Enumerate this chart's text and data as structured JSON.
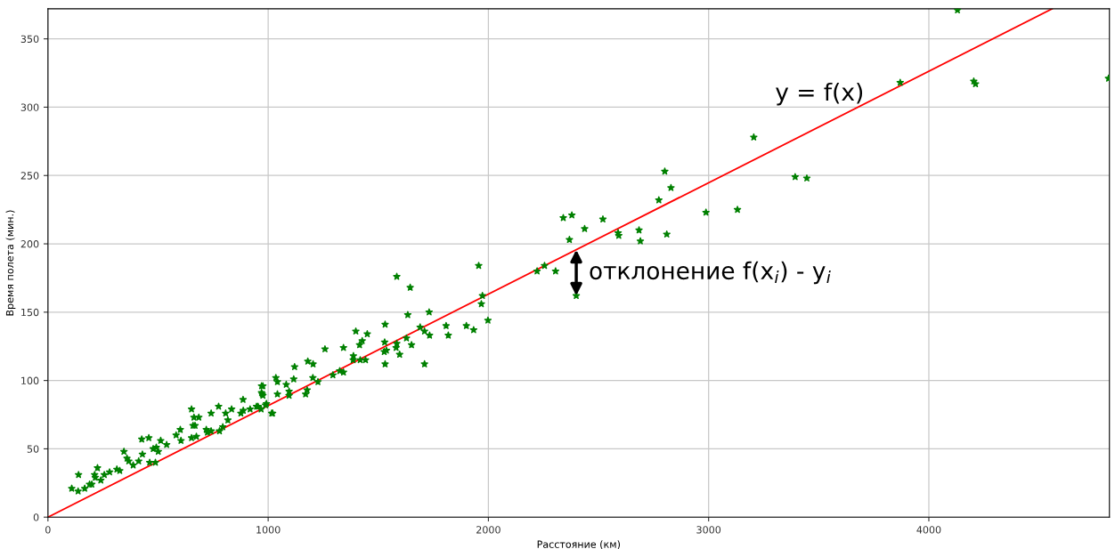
{
  "chart_data": {
    "type": "scatter",
    "xlabel": "Расстояние (км)",
    "ylabel": "Время полета (мин.)",
    "xlim": [
      0,
      4820
    ],
    "ylim": [
      0,
      372
    ],
    "xticks": [
      0,
      1000,
      2000,
      3000,
      4000
    ],
    "yticks": [
      0,
      50,
      100,
      150,
      200,
      250,
      300,
      350
    ],
    "grid": true,
    "series": [
      {
        "color": "#008000",
        "marker": "star",
        "x": [
          108,
          137,
          139,
          167,
          189,
          199,
          212,
          215,
          225,
          240,
          256,
          280,
          313,
          326,
          345,
          359,
          367,
          387,
          412,
          429,
          426,
          458,
          462,
          488,
          478,
          492,
          512,
          501,
          539,
          582,
          601,
          604,
          652,
          663,
          685,
          659,
          652,
          674,
          668,
          719,
          724,
          741,
          741,
          775,
          779,
          794,
          807,
          817,
          834,
          876,
          886,
          887,
          918,
          947,
          970,
          973,
          988,
          1020,
          1035,
          1042,
          976,
          970,
          976,
          992,
          954,
          968,
          1016,
          1082,
          1095,
          1095,
          1042,
          1177,
          1170,
          1116,
          1120,
          1180,
          1204,
          1203,
          1226,
          1258,
          1294,
          1325,
          1342,
          1342,
          1386,
          1387,
          1398,
          1415,
          1418,
          1427,
          1442,
          1450,
          1527,
          1529,
          1531,
          1531,
          1537,
          1581,
          1584,
          1584,
          1597,
          1628,
          1634,
          1645,
          1651,
          1690,
          1710,
          1710,
          1731,
          1733,
          1808,
          1818,
          1900,
          1933,
          1956,
          1968,
          1973,
          1998,
          2221,
          2255,
          2305,
          2340,
          2368,
          2379,
          2399,
          2437,
          2520,
          2589,
          2592,
          2684,
          2690,
          2774,
          2801,
          2810,
          2829,
          2988,
          3131,
          3205,
          3393,
          3446,
          3870,
          4130,
          4204,
          4212,
          4816
        ],
        "values": [
          21,
          19,
          31,
          21,
          24,
          24,
          31,
          29,
          36,
          27,
          31,
          33,
          35,
          34,
          48,
          43,
          41,
          38,
          41,
          46,
          57,
          58,
          40,
          40,
          50,
          51,
          56,
          48,
          53,
          60,
          64,
          56,
          79,
          73,
          73,
          67,
          58,
          59,
          67,
          64,
          62,
          63,
          76,
          81,
          63,
          66,
          76,
          71,
          79,
          76,
          86,
          78,
          79,
          81,
          96,
          90,
          82,
          76,
          102,
          90,
          96,
          91,
          89,
          83,
          81,
          79,
          76,
          97,
          92,
          89,
          99,
          93,
          90,
          101,
          110,
          114,
          112,
          102,
          99,
          123,
          104,
          107,
          106,
          124,
          115,
          118,
          136,
          126,
          115,
          129,
          115,
          134,
          121,
          128,
          141,
          112,
          122,
          124,
          127,
          176,
          119,
          131,
          148,
          168,
          126,
          139,
          136,
          112,
          150,
          133,
          140,
          133,
          140,
          137,
          184,
          156,
          162,
          144,
          180,
          184,
          180,
          219,
          203,
          221,
          162,
          211,
          218,
          208,
          206,
          210,
          202,
          232,
          253,
          207,
          241,
          223,
          225,
          278,
          249,
          248,
          318,
          371,
          319,
          317,
          321
        ]
      },
      {
        "type": "line",
        "color": "#ff0000",
        "x": [
          0,
          4560
        ],
        "values": [
          0,
          372
        ]
      }
    ],
    "annotations": [
      "y = f(x)",
      {
        "text": "отклонение f(x$_{i}$) - y$_{i}$",
        "x": 2399,
        "y": 162
      }
    ]
  }
}
